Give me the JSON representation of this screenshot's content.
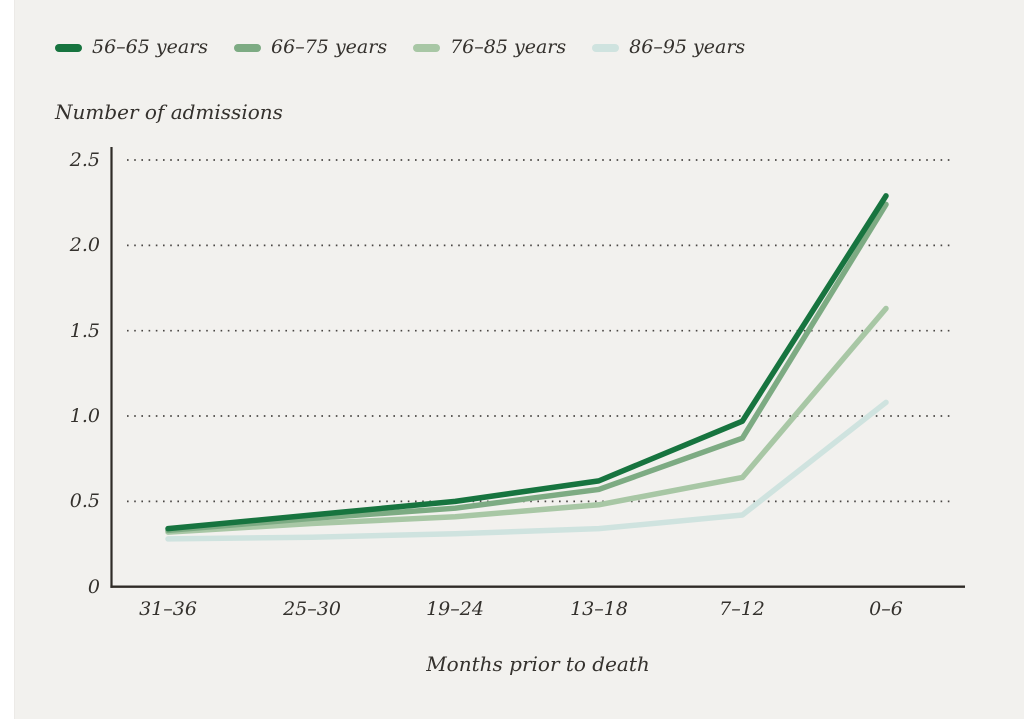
{
  "styles": {
    "background": "#f2f1ee",
    "axis_color": "#2f2b27",
    "grid_color": "#4a4744",
    "text_color": "#34312d"
  },
  "legend": {
    "items": [
      {
        "label": "56–65 years",
        "color": "#17743f"
      },
      {
        "label": "66–75 years",
        "color": "#7dab83"
      },
      {
        "label": "76–85 years",
        "color": "#a8c7a5"
      },
      {
        "label": "86–95 years",
        "color": "#cfe3df"
      }
    ]
  },
  "chart_data": {
    "type": "line",
    "title": "",
    "ylabel": "Number of admissions",
    "xlabel": "Months prior to death",
    "categories": [
      "31–36",
      "25–30",
      "19–24",
      "13–18",
      "7–12",
      "0–6"
    ],
    "yticks": [
      "2.5",
      "2.0",
      "1.5",
      "1.0",
      "0.5",
      "0"
    ],
    "ylim": [
      0,
      2.5
    ],
    "grid": "horizontal-dotted",
    "legend_position": "top-left",
    "series": [
      {
        "name": "56–65 years",
        "color": "#17743f",
        "values": [
          0.34,
          0.42,
          0.5,
          0.62,
          0.97,
          2.29
        ]
      },
      {
        "name": "66–75 years",
        "color": "#7dab83",
        "values": [
          0.33,
          0.4,
          0.46,
          0.57,
          0.87,
          2.24
        ]
      },
      {
        "name": "76–85 years",
        "color": "#a8c7a5",
        "values": [
          0.32,
          0.37,
          0.41,
          0.48,
          0.64,
          1.63
        ]
      },
      {
        "name": "86–95 years",
        "color": "#cfe3df",
        "values": [
          0.28,
          0.29,
          0.31,
          0.34,
          0.42,
          1.08
        ]
      }
    ]
  }
}
